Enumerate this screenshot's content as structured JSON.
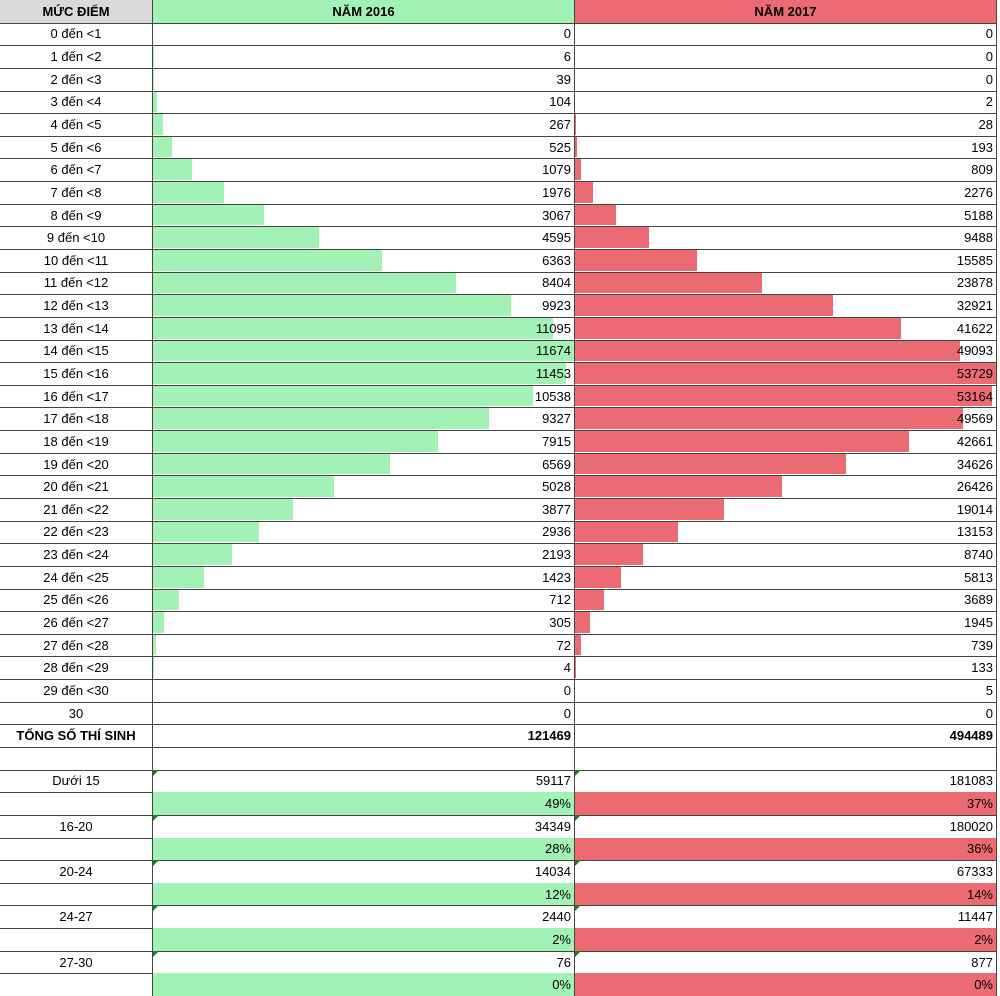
{
  "header": {
    "label": "MỨC ĐIỂM",
    "y2016": "NĂM 2016",
    "y2017": "NĂM 2017"
  },
  "rows": [
    {
      "label": "0 đến <1",
      "y2016": 0,
      "y2017": 0
    },
    {
      "label": "1 đến <2",
      "y2016": 6,
      "y2017": 0
    },
    {
      "label": "2 đến <3",
      "y2016": 39,
      "y2017": 0
    },
    {
      "label": "3 đến <4",
      "y2016": 104,
      "y2017": 2
    },
    {
      "label": "4 đến <5",
      "y2016": 267,
      "y2017": 28
    },
    {
      "label": "5 đến <6",
      "y2016": 525,
      "y2017": 193
    },
    {
      "label": "6 đến <7",
      "y2016": 1079,
      "y2017": 809
    },
    {
      "label": "7 đến <8",
      "y2016": 1976,
      "y2017": 2276
    },
    {
      "label": "8 đến <9",
      "y2016": 3067,
      "y2017": 5188
    },
    {
      "label": "9 đến <10",
      "y2016": 4595,
      "y2017": 9488
    },
    {
      "label": "10 đến <11",
      "y2016": 6363,
      "y2017": 15585
    },
    {
      "label": "11 đến <12",
      "y2016": 8404,
      "y2017": 23878
    },
    {
      "label": "12 đến <13",
      "y2016": 9923,
      "y2017": 32921
    },
    {
      "label": "13 đến <14",
      "y2016": 11095,
      "y2017": 41622
    },
    {
      "label": "14 đến <15",
      "y2016": 11674,
      "y2017": 49093
    },
    {
      "label": "15 đến <16",
      "y2016": 11453,
      "y2017": 53729
    },
    {
      "label": "16 đến <17",
      "y2016": 10538,
      "y2017": 53164
    },
    {
      "label": "17 đến <18",
      "y2016": 9327,
      "y2017": 49569
    },
    {
      "label": "18 đến <19",
      "y2016": 7915,
      "y2017": 42661
    },
    {
      "label": "19 đến <20",
      "y2016": 6569,
      "y2017": 34626
    },
    {
      "label": "20 đến <21",
      "y2016": 5028,
      "y2017": 26426
    },
    {
      "label": "21 đến <22",
      "y2016": 3877,
      "y2017": 19014
    },
    {
      "label": "22 đến <23",
      "y2016": 2936,
      "y2017": 13153
    },
    {
      "label": "23 đến <24",
      "y2016": 2193,
      "y2017": 8740
    },
    {
      "label": "24 đến <25",
      "y2016": 1423,
      "y2017": 5813
    },
    {
      "label": "25 đến <26",
      "y2016": 712,
      "y2017": 3689
    },
    {
      "label": "26 đến <27",
      "y2016": 305,
      "y2017": 1945
    },
    {
      "label": "27 đến <28",
      "y2016": 72,
      "y2017": 739
    },
    {
      "label": "28 đến <29",
      "y2016": 4,
      "y2017": 133
    },
    {
      "label": "29 đến <30",
      "y2016": 0,
      "y2017": 5
    },
    {
      "label": "30",
      "y2016": 0,
      "y2017": 0
    }
  ],
  "total": {
    "label": "TỔNG SỐ THÍ SINH",
    "y2016": 121469,
    "y2017": 494489
  },
  "groups": [
    {
      "label": "Dưới 15",
      "y2016": 59117,
      "y2017": 181083,
      "pct2016": "49%",
      "pct2017": "37%"
    },
    {
      "label": "16-20",
      "y2016": 34349,
      "y2017": 180020,
      "pct2016": "28%",
      "pct2017": "36%"
    },
    {
      "label": "20-24",
      "y2016": 14034,
      "y2017": 67333,
      "pct2016": "12%",
      "pct2017": "14%"
    },
    {
      "label": "24-27",
      "y2016": 2440,
      "y2017": 11447,
      "pct2016": "2%",
      "pct2017": "2%"
    },
    {
      "label": "27-30",
      "y2016": 76,
      "y2017": 877,
      "pct2016": "0%",
      "pct2017": "0%"
    }
  ]
}
